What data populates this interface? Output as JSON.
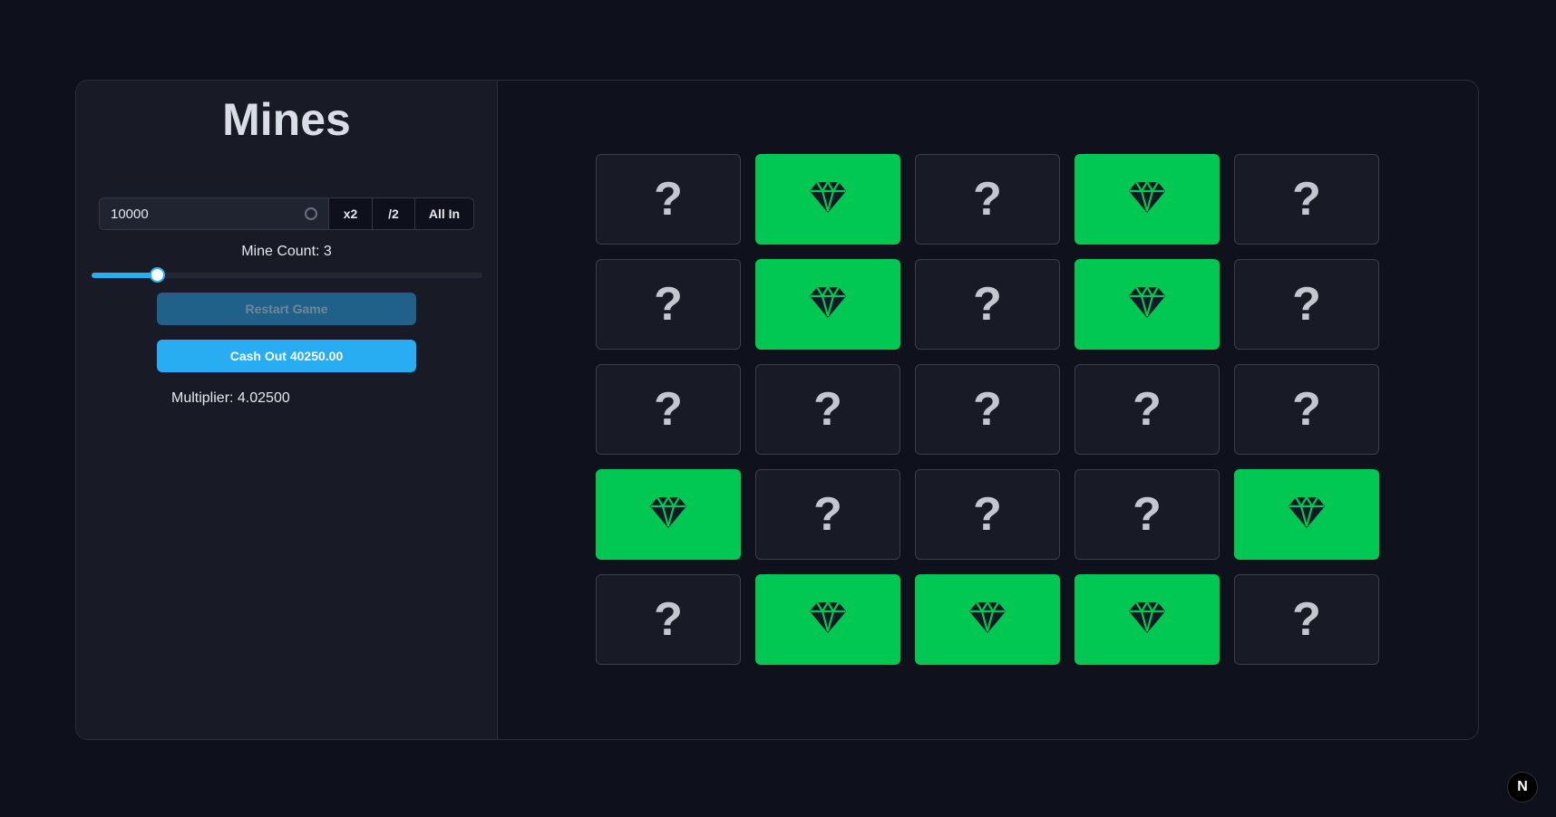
{
  "title": "Mines",
  "bet": {
    "value": "10000",
    "double_label": "x2",
    "half_label": "/2",
    "all_in_label": "All In"
  },
  "mine_count": {
    "label": "Mine Count: 3",
    "value": 3,
    "min": 1,
    "max": 24
  },
  "restart_label": "Restart Game",
  "cashout_label": "Cash Out 40250.00",
  "multiplier_label": "Multiplier: 4.02500",
  "colors": {
    "gem": "#00c853",
    "accent": "#28acf2",
    "tile": "#181b26"
  },
  "grid": [
    [
      "hidden",
      "gem",
      "hidden",
      "gem",
      "hidden"
    ],
    [
      "hidden",
      "gem",
      "hidden",
      "gem",
      "hidden"
    ],
    [
      "hidden",
      "hidden",
      "hidden",
      "hidden",
      "hidden"
    ],
    [
      "gem",
      "hidden",
      "hidden",
      "hidden",
      "gem"
    ],
    [
      "hidden",
      "gem",
      "gem",
      "gem",
      "hidden"
    ]
  ],
  "hidden_symbol": "?",
  "badge": "N"
}
